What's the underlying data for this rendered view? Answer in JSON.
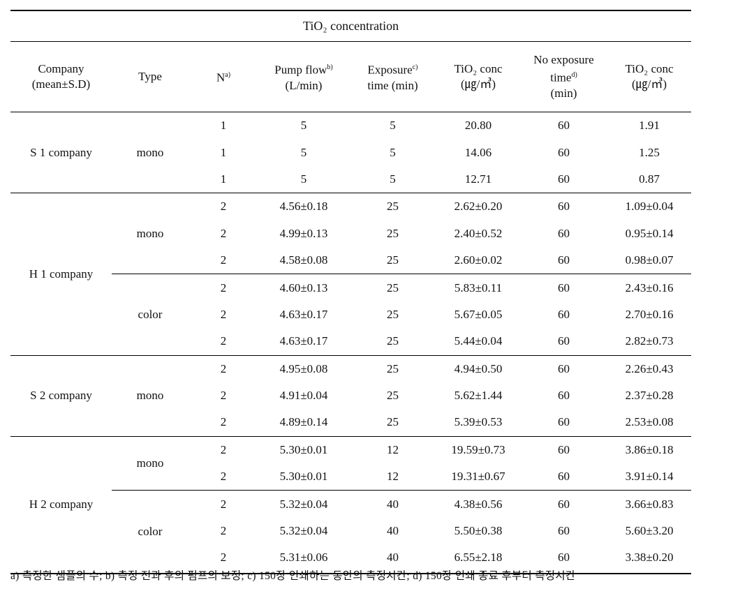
{
  "table": {
    "title": "TiO₂ concentration",
    "headers": [
      {
        "lines": [
          {
            "text": "Company"
          },
          {
            "text": "(mean±S.D)"
          }
        ]
      },
      {
        "lines": [
          {
            "text": "Type"
          }
        ]
      },
      {
        "lines": [
          {
            "text": "N",
            "sup": "a)"
          }
        ]
      },
      {
        "lines": [
          {
            "text": "Pump flow",
            "sup": "b)"
          },
          {
            "text": "(L/min)"
          }
        ]
      },
      {
        "lines": [
          {
            "text": "Exposure",
            "sup": "c)"
          },
          {
            "text": "time (min)"
          }
        ]
      },
      {
        "lines": [
          {
            "text": "TiO₂ conc"
          },
          {
            "text": "(㎍/㎥)"
          }
        ]
      },
      {
        "lines": [
          {
            "text": "No exposure"
          },
          {
            "text": "time",
            "sup": "d)"
          },
          {
            "text": "(min)"
          }
        ]
      },
      {
        "lines": [
          {
            "text": "TiO₂ conc"
          },
          {
            "text": "(㎍/㎥)"
          }
        ]
      }
    ],
    "companies": [
      {
        "name": "S 1 company",
        "types": [
          {
            "name": "mono",
            "rows": [
              [
                "1",
                "5",
                "5",
                "20.80",
                "60",
                "1.91"
              ],
              [
                "1",
                "5",
                "5",
                "14.06",
                "60",
                "1.25"
              ],
              [
                "1",
                "5",
                "5",
                "12.71",
                "60",
                "0.87"
              ]
            ]
          }
        ]
      },
      {
        "name": "H 1 company",
        "types": [
          {
            "name": "mono",
            "rows": [
              [
                "2",
                "4.56±0.18",
                "25",
                "2.62±0.20",
                "60",
                "1.09±0.04"
              ],
              [
                "2",
                "4.99±0.13",
                "25",
                "2.40±0.52",
                "60",
                "0.95±0.14"
              ],
              [
                "2",
                "4.58±0.08",
                "25",
                "2.60±0.02",
                "60",
                "0.98±0.07"
              ]
            ]
          },
          {
            "name": "color",
            "rows": [
              [
                "2",
                "4.60±0.13",
                "25",
                "5.83±0.11",
                "60",
                "2.43±0.16"
              ],
              [
                "2",
                "4.63±0.17",
                "25",
                "5.67±0.05",
                "60",
                "2.70±0.16"
              ],
              [
                "2",
                "4.63±0.17",
                "25",
                "5.44±0.04",
                "60",
                "2.82±0.73"
              ]
            ]
          }
        ]
      },
      {
        "name": "S 2 company",
        "types": [
          {
            "name": "mono",
            "rows": [
              [
                "2",
                "4.95±0.08",
                "25",
                "4.94±0.50",
                "60",
                "2.26±0.43"
              ],
              [
                "2",
                "4.91±0.04",
                "25",
                "5.62±1.44",
                "60",
                "2.37±0.28"
              ],
              [
                "2",
                "4.89±0.14",
                "25",
                "5.39±0.53",
                "60",
                "2.53±0.08"
              ]
            ]
          }
        ]
      },
      {
        "name": "H 2 company",
        "types": [
          {
            "name": "mono",
            "rows": [
              [
                "2",
                "5.30±0.01",
                "12",
                "19.59±0.73",
                "60",
                "3.86±0.18"
              ],
              [
                "2",
                "5.30±0.01",
                "12",
                "19.31±0.67",
                "60",
                "3.91±0.14"
              ]
            ]
          },
          {
            "name": "color",
            "rows": [
              [
                "2",
                "5.32±0.04",
                "40",
                "4.38±0.56",
                "60",
                "3.66±0.83"
              ],
              [
                "2",
                "5.32±0.04",
                "40",
                "5.50±0.38",
                "60",
                "5.60±3.20"
              ],
              [
                "2",
                "5.31±0.06",
                "40",
                "6.55±2.18",
                "60",
                "3.38±0.20"
              ]
            ]
          }
        ]
      }
    ]
  },
  "footnote": "a) 측정한 샘플의 수; b) 측정 전과 후의 펌프의 보정; c) 150장 인쇄하는 동안의 측정시간; d) 150장 인쇄 종료 후부터 측정시간"
}
